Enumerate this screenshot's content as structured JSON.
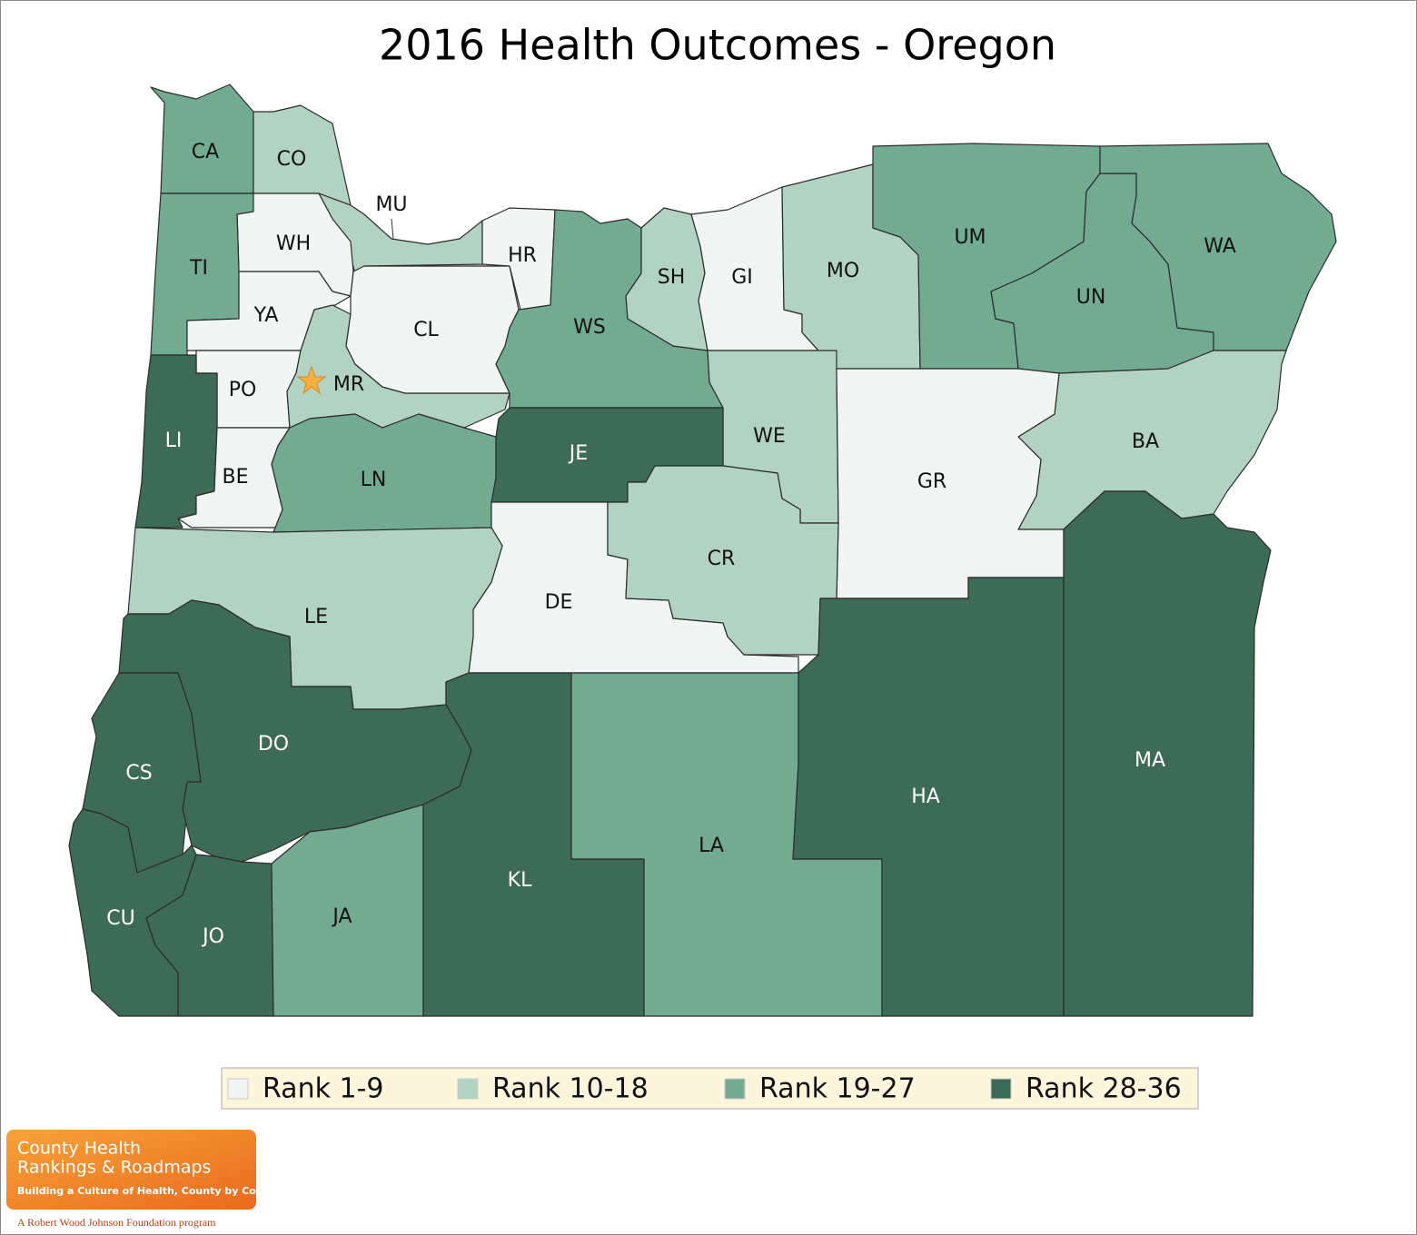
{
  "title": "2016 Health Outcomes - Oregon",
  "legend": [
    {
      "label": "Rank 1-9",
      "color": "#f1f5f3"
    },
    {
      "label": "Rank 10-18",
      "color": "#b2d3c4"
    },
    {
      "label": "Rank 19-27",
      "color": "#72ab92"
    },
    {
      "label": "Rank 28-36",
      "color": "#3d6b57"
    }
  ],
  "counties": [
    {
      "label": "CA",
      "rank": "Rank 19-27"
    },
    {
      "label": "CO",
      "rank": "Rank 10-18"
    },
    {
      "label": "MU",
      "rank": "Rank 10-18"
    },
    {
      "label": "WH",
      "rank": "Rank 1-9"
    },
    {
      "label": "TI",
      "rank": "Rank 19-27"
    },
    {
      "label": "YA",
      "rank": "Rank 1-9"
    },
    {
      "label": "PO",
      "rank": "Rank 1-9"
    },
    {
      "label": "MR",
      "rank": "Rank 10-18"
    },
    {
      "label": "LI",
      "rank": "Rank 28-36"
    },
    {
      "label": "BE",
      "rank": "Rank 1-9"
    },
    {
      "label": "LN",
      "rank": "Rank 19-27"
    },
    {
      "label": "CL",
      "rank": "Rank 1-9"
    },
    {
      "label": "HR",
      "rank": "Rank 1-9"
    },
    {
      "label": "WS",
      "rank": "Rank 19-27"
    },
    {
      "label": "SH",
      "rank": "Rank 10-18"
    },
    {
      "label": "GI",
      "rank": "Rank 1-9"
    },
    {
      "label": "MO",
      "rank": "Rank 10-18"
    },
    {
      "label": "UM",
      "rank": "Rank 19-27"
    },
    {
      "label": "UN",
      "rank": "Rank 19-27"
    },
    {
      "label": "WA",
      "rank": "Rank 19-27"
    },
    {
      "label": "WE",
      "rank": "Rank 10-18"
    },
    {
      "label": "JE",
      "rank": "Rank 28-36"
    },
    {
      "label": "BA",
      "rank": "Rank 10-18"
    },
    {
      "label": "GR",
      "rank": "Rank 1-9"
    },
    {
      "label": "DE",
      "rank": "Rank 1-9"
    },
    {
      "label": "CR",
      "rank": "Rank 10-18"
    },
    {
      "label": "LE",
      "rank": "Rank 10-18"
    },
    {
      "label": "CS",
      "rank": "Rank 28-36"
    },
    {
      "label": "DO",
      "rank": "Rank 28-36"
    },
    {
      "label": "CU",
      "rank": "Rank 28-36"
    },
    {
      "label": "JO",
      "rank": "Rank 28-36"
    },
    {
      "label": "JA",
      "rank": "Rank 19-27"
    },
    {
      "label": "KL",
      "rank": "Rank 28-36"
    },
    {
      "label": "LA",
      "rank": "Rank 19-27"
    },
    {
      "label": "HA",
      "rank": "Rank 28-36"
    },
    {
      "label": "MA",
      "rank": "Rank 28-36"
    }
  ],
  "logo": {
    "line1": "County Health",
    "line2": "Rankings & Roadmaps",
    "tagline": "Building a Culture of Health, County by County",
    "program": "A Robert Wood Johnson Foundation program"
  }
}
